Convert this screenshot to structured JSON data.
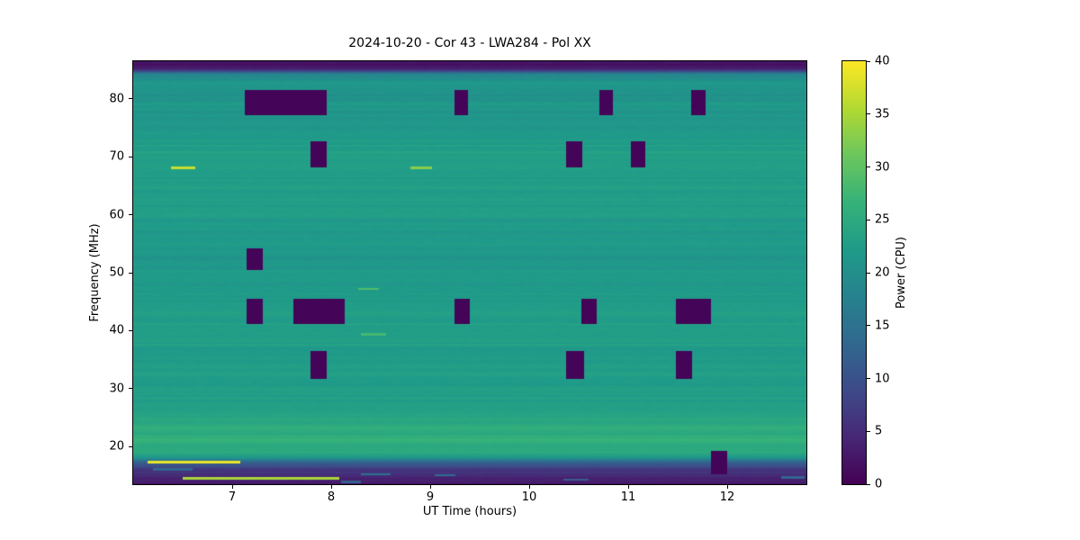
{
  "chart_data": {
    "type": "heatmap",
    "title": "2024-10-20 - Cor 43 - LWA284 - Pol XX",
    "xlabel": "UT Time (hours)",
    "ylabel": "Frequency (MHz)",
    "colorbar_label": "Power (CPU)",
    "x_range": [
      6.0,
      12.8
    ],
    "y_range": [
      13.5,
      86.5
    ],
    "power_range": [
      0,
      40
    ],
    "x_ticks": [
      7,
      8,
      9,
      10,
      11,
      12
    ],
    "y_ticks": [
      20,
      30,
      40,
      50,
      60,
      70,
      80
    ],
    "colorbar_ticks": [
      0,
      5,
      10,
      15,
      20,
      25,
      30,
      35,
      40
    ],
    "colormap": "viridis",
    "legend_position": "right-colorbar",
    "grid": false,
    "colormap_stops": [
      [
        68,
        1,
        84
      ],
      [
        71,
        39,
        117
      ],
      [
        62,
        74,
        137
      ],
      [
        49,
        104,
        142
      ],
      [
        38,
        130,
        142
      ],
      [
        31,
        155,
        137
      ],
      [
        53,
        178,
        121
      ],
      [
        108,
        198,
        94
      ],
      [
        178,
        217,
        50
      ],
      [
        253,
        231,
        37
      ]
    ],
    "freq_profile": [
      [
        13.5,
        2.5
      ],
      [
        14.0,
        4.5
      ],
      [
        14.5,
        3
      ],
      [
        15.0,
        5
      ],
      [
        15.6,
        5.5
      ],
      [
        16.2,
        7
      ],
      [
        16.8,
        10
      ],
      [
        17.4,
        14
      ],
      [
        18.0,
        21
      ],
      [
        18.8,
        25
      ],
      [
        19.6,
        26
      ],
      [
        20.4,
        25
      ],
      [
        21.2,
        26.5
      ],
      [
        22.0,
        25
      ],
      [
        23.0,
        26.5
      ],
      [
        24.0,
        24.5
      ],
      [
        25.0,
        24.8
      ],
      [
        26.0,
        23.5
      ],
      [
        28.0,
        23
      ],
      [
        31.0,
        22.5
      ],
      [
        35.0,
        22.3
      ],
      [
        39.0,
        22.8
      ],
      [
        43.0,
        23
      ],
      [
        47.0,
        22.3
      ],
      [
        50.0,
        21.8
      ],
      [
        54.0,
        21.5
      ],
      [
        58.0,
        22
      ],
      [
        62.0,
        22.3
      ],
      [
        66.0,
        22.8
      ],
      [
        69.0,
        23
      ],
      [
        72.0,
        22.5
      ],
      [
        75.0,
        22
      ],
      [
        78.0,
        21.5
      ],
      [
        81.0,
        21
      ],
      [
        83.0,
        20.5
      ],
      [
        84.3,
        18
      ],
      [
        84.8,
        8
      ],
      [
        85.3,
        3
      ],
      [
        86.5,
        2
      ]
    ],
    "flagged_regions": [
      [
        7.13,
        7.95,
        77.2,
        81.6
      ],
      [
        9.25,
        9.38,
        77.2,
        81.6
      ],
      [
        10.71,
        10.85,
        77.2,
        81.6
      ],
      [
        11.64,
        11.78,
        77.2,
        81.6
      ],
      [
        7.79,
        7.95,
        68.2,
        72.6
      ],
      [
        10.37,
        10.54,
        68.2,
        72.6
      ],
      [
        11.03,
        11.17,
        68.2,
        72.6
      ],
      [
        7.15,
        7.31,
        50.5,
        54.2
      ],
      [
        7.15,
        7.31,
        41.2,
        45.5
      ],
      [
        7.62,
        8.14,
        41.2,
        45.5
      ],
      [
        9.25,
        9.4,
        41.2,
        45.5
      ],
      [
        10.53,
        10.68,
        41.2,
        45.5
      ],
      [
        11.48,
        11.84,
        41.2,
        45.5
      ],
      [
        7.79,
        7.95,
        31.7,
        36.5
      ],
      [
        10.37,
        10.55,
        31.7,
        36.5
      ],
      [
        11.48,
        11.65,
        31.7,
        36.5
      ],
      [
        11.84,
        12.0,
        15.2,
        19.2
      ]
    ],
    "bright_features": [
      [
        6.38,
        6.63,
        67.9,
        68.35,
        37
      ],
      [
        8.8,
        9.02,
        67.9,
        68.35,
        33
      ],
      [
        8.27,
        8.48,
        47.0,
        47.4,
        29
      ],
      [
        8.3,
        8.55,
        39.2,
        39.6,
        28
      ],
      [
        6.15,
        7.08,
        17.1,
        17.55,
        39
      ],
      [
        6.5,
        8.08,
        14.35,
        14.8,
        35
      ],
      [
        8.3,
        8.6,
        15.0,
        15.35,
        15
      ],
      [
        9.05,
        9.25,
        14.9,
        15.2,
        14
      ],
      [
        12.55,
        12.78,
        14.5,
        14.9,
        13
      ],
      [
        8.1,
        8.3,
        13.7,
        14.05,
        12
      ],
      [
        10.35,
        10.6,
        14.1,
        14.45,
        12
      ],
      [
        6.2,
        6.6,
        15.9,
        16.25,
        13
      ]
    ]
  }
}
